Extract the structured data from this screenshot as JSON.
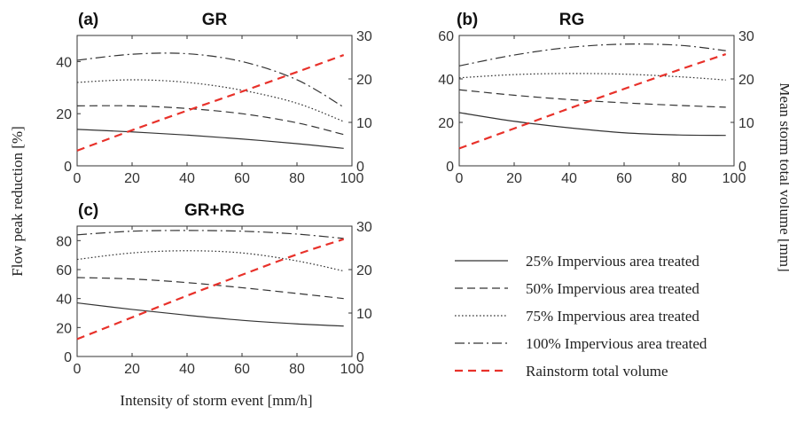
{
  "figure": {
    "ylabel_left": "Flow peak reduction [%]",
    "ylabel_right": "Mean  storm total volume [mm]",
    "xlabel": "Intensity of storm event [mm/h]"
  },
  "legend": [
    {
      "label": "25% Impervious area treated",
      "style": "solid",
      "color": "#333333"
    },
    {
      "label": "50% Impervious area treated",
      "style": "dashed",
      "color": "#333333"
    },
    {
      "label": "75% Impervious area treated",
      "style": "dotted",
      "color": "#333333"
    },
    {
      "label": "100% Impervious area treated",
      "style": "dashdot",
      "color": "#333333"
    },
    {
      "label": "Rainstorm total volume",
      "style": "dashed",
      "color": "#e8312a"
    }
  ],
  "chart_data": [
    {
      "type": "line",
      "panel": "(a)",
      "title": "GR",
      "x": [
        0,
        20,
        40,
        60,
        80,
        97
      ],
      "xlim": [
        0,
        100
      ],
      "xticks": [
        0,
        20,
        40,
        60,
        80,
        100
      ],
      "ylim": [
        0,
        50
      ],
      "yticks": [
        0,
        20,
        40
      ],
      "y2lim": [
        0,
        30
      ],
      "y2ticks": [
        0,
        10,
        20,
        30
      ],
      "series": [
        {
          "style": "solid",
          "axis": "left",
          "values": [
            14,
            13,
            11.8,
            10.3,
            8.5,
            6.7
          ]
        },
        {
          "style": "dashed",
          "axis": "left",
          "values": [
            23,
            23,
            22,
            20,
            16.5,
            12
          ]
        },
        {
          "style": "dotted",
          "axis": "left",
          "values": [
            32,
            33,
            32,
            29,
            24,
            17
          ]
        },
        {
          "style": "dashdot",
          "axis": "left",
          "values": [
            40.5,
            42.8,
            43,
            40,
            33,
            22.5
          ]
        },
        {
          "style": "dashed",
          "axis": "right",
          "color": "#e8312a",
          "values": [
            3.5,
            8.2,
            12.7,
            17.1,
            21.6,
            25.5
          ]
        }
      ]
    },
    {
      "type": "line",
      "panel": "(b)",
      "title": "RG",
      "x": [
        0,
        20,
        40,
        60,
        80,
        97
      ],
      "xlim": [
        0,
        100
      ],
      "xticks": [
        0,
        20,
        40,
        60,
        80,
        100
      ],
      "ylim": [
        0,
        60
      ],
      "yticks": [
        0,
        20,
        40,
        60
      ],
      "y2lim": [
        0,
        30
      ],
      "y2ticks": [
        0,
        10,
        20,
        30
      ],
      "series": [
        {
          "style": "solid",
          "axis": "left",
          "values": [
            24.5,
            20.5,
            17.5,
            15.2,
            14.2,
            14
          ]
        },
        {
          "style": "dashed",
          "axis": "left",
          "values": [
            35,
            32.5,
            30.5,
            29,
            27.8,
            27
          ]
        },
        {
          "style": "dotted",
          "axis": "left",
          "values": [
            40.5,
            42,
            42.5,
            42.2,
            41,
            39.5
          ]
        },
        {
          "style": "dashdot",
          "axis": "left",
          "values": [
            46,
            51,
            54.5,
            56,
            55.5,
            53
          ]
        },
        {
          "style": "dashed",
          "axis": "right",
          "color": "#e8312a",
          "values": [
            4,
            8.6,
            13.2,
            17.7,
            22.1,
            25.7
          ]
        }
      ]
    },
    {
      "type": "line",
      "panel": "(c)",
      "title": "GR+RG",
      "x": [
        0,
        20,
        40,
        60,
        80,
        97
      ],
      "xlim": [
        0,
        100
      ],
      "xticks": [
        0,
        20,
        40,
        60,
        80,
        100
      ],
      "ylim": [
        0,
        90
      ],
      "yticks": [
        0,
        20,
        40,
        60,
        80
      ],
      "y2lim": [
        0,
        30
      ],
      "y2ticks": [
        0,
        10,
        20,
        30
      ],
      "series": [
        {
          "style": "solid",
          "axis": "left",
          "values": [
            37,
            32.5,
            28.5,
            25,
            22.5,
            21
          ]
        },
        {
          "style": "dashed",
          "axis": "left",
          "values": [
            54.5,
            53.5,
            51,
            47.5,
            43.5,
            40
          ]
        },
        {
          "style": "dotted",
          "axis": "left",
          "values": [
            67,
            71.5,
            73,
            71.5,
            66,
            59
          ]
        },
        {
          "style": "dashdot",
          "axis": "left",
          "values": [
            84,
            86.5,
            87,
            86.5,
            84.5,
            81.5
          ]
        },
        {
          "style": "dashed",
          "axis": "right",
          "color": "#e8312a",
          "values": [
            4,
            9,
            14,
            18.8,
            23.5,
            27
          ]
        }
      ]
    }
  ]
}
